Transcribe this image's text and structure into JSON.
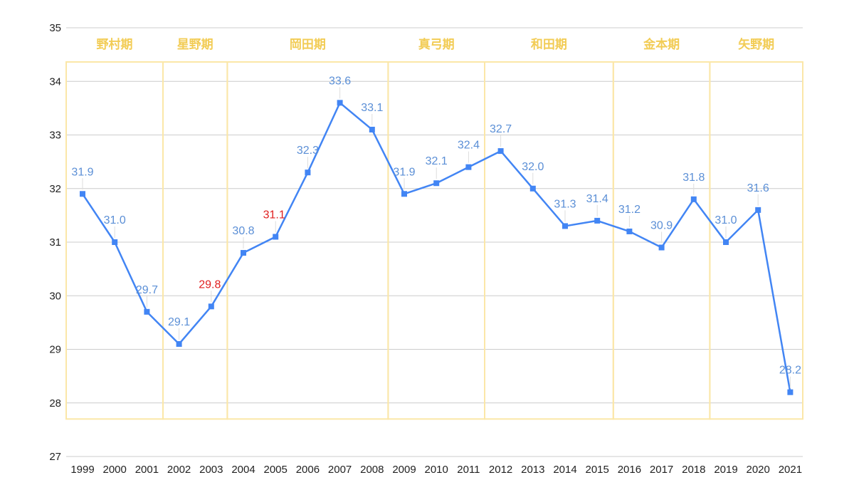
{
  "chart_data": {
    "type": "line",
    "x": [
      "1999",
      "2000",
      "2001",
      "2002",
      "2003",
      "2004",
      "2005",
      "2006",
      "2007",
      "2008",
      "2009",
      "2010",
      "2011",
      "2012",
      "2013",
      "2014",
      "2015",
      "2016",
      "2017",
      "2018",
      "2019",
      "2020",
      "2021"
    ],
    "series": [
      {
        "values": [
          31.9,
          31.0,
          29.7,
          29.1,
          29.8,
          30.8,
          31.1,
          32.3,
          33.6,
          33.1,
          31.9,
          32.1,
          32.4,
          32.7,
          32.0,
          31.3,
          31.4,
          31.2,
          30.9,
          31.8,
          31.0,
          31.6,
          28.2
        ],
        "labels": [
          "31.9",
          "31.0",
          "29.7",
          "29.1",
          "29.8",
          "30.8",
          "31.1",
          "32.3",
          "33.6",
          "33.1",
          "31.9",
          "32.1",
          "32.4",
          "32.7",
          "32.0",
          "31.3",
          "31.4",
          "31.2",
          "30.9",
          "31.8",
          "31.0",
          "31.6",
          "28.2"
        ],
        "highlighted_labels": [
          "29.8",
          "31.1"
        ]
      }
    ],
    "ylim": [
      27,
      35
    ],
    "yticks": [
      "27",
      "28",
      "29",
      "30",
      "31",
      "32",
      "33",
      "34",
      "35"
    ],
    "eras": [
      {
        "label": "野村期",
        "from": "1999",
        "to": "2001"
      },
      {
        "label": "星野期",
        "from": "2002",
        "to": "2003"
      },
      {
        "label": "岡田期",
        "from": "2004",
        "to": "2008"
      },
      {
        "label": "真弓期",
        "from": "2009",
        "to": "2011"
      },
      {
        "label": "和田期",
        "from": "2012",
        "to": "2015"
      },
      {
        "label": "金本期",
        "from": "2016",
        "to": "2018"
      },
      {
        "label": "矢野期",
        "from": "2019",
        "to": "2021"
      }
    ],
    "grid": true,
    "colors": {
      "line": "#4285f4",
      "data_label": "#5b8fd6",
      "highlight_label": "#e02020",
      "era_border": "#fbe7a8",
      "era_label": "#f2cc55",
      "gridline": "#cccccc"
    }
  }
}
